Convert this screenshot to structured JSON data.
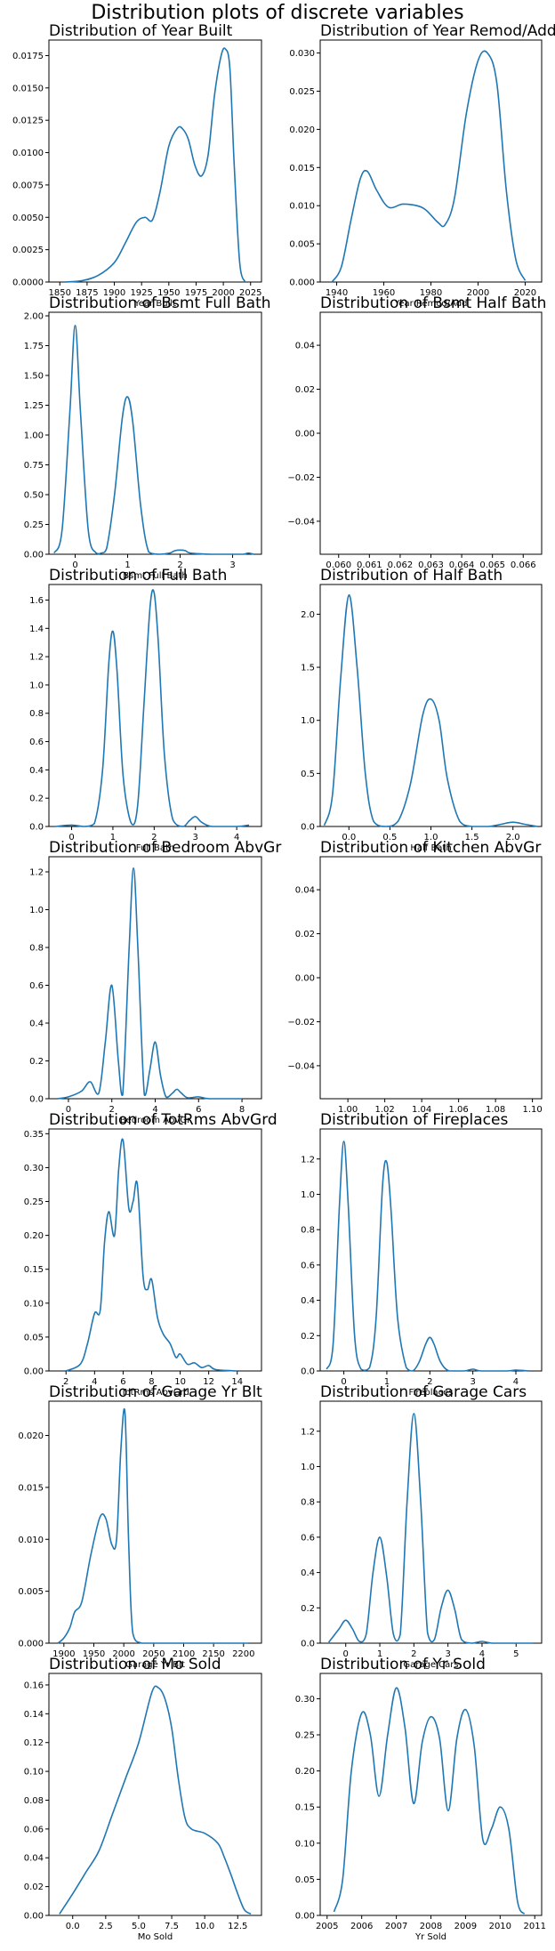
{
  "page_title": "Distribution plots of discrete variables",
  "colors": {
    "line": "#1f77b4",
    "axis": "#000000",
    "background": "#ffffff"
  },
  "chart_data": [
    {
      "type": "line",
      "title": "Distribution of Year Built",
      "xlabel": "Year Built",
      "ylabel": "",
      "xlim": [
        1840,
        2035
      ],
      "ylim": [
        0,
        0.0187
      ],
      "xticks": [
        1850,
        1875,
        1900,
        1925,
        1950,
        1975,
        2000,
        2025
      ],
      "yticks": [
        0,
        0.0025,
        0.005,
        0.0075,
        0.01,
        0.0125,
        0.015,
        0.0175
      ],
      "ytick_labels": [
        "0.0000",
        "0.0025",
        "0.0050",
        "0.0075",
        "0.0100",
        "0.0125",
        "0.0150",
        "0.0175"
      ],
      "x": [
        1855,
        1870,
        1885,
        1900,
        1910,
        1920,
        1928,
        1935,
        1942,
        1950,
        1958,
        1963,
        1968,
        1974,
        1980,
        1986,
        1992,
        1998,
        2002,
        2006,
        2010,
        2015,
        2020
      ],
      "y": [
        0,
        0.0001,
        0.0005,
        0.0015,
        0.003,
        0.0046,
        0.005,
        0.0048,
        0.007,
        0.0105,
        0.0119,
        0.0118,
        0.011,
        0.009,
        0.0082,
        0.0098,
        0.0145,
        0.0175,
        0.018,
        0.0165,
        0.009,
        0.0015,
        0
      ]
    },
    {
      "type": "line",
      "title": "Distribution of Year Remod/Add",
      "xlabel": "Year Remod/Add",
      "ylabel": "",
      "xlim": [
        1933,
        2027
      ],
      "ylim": [
        0,
        0.0317
      ],
      "xticks": [
        1940,
        1960,
        1980,
        2000,
        2020
      ],
      "yticks": [
        0,
        0.005,
        0.01,
        0.015,
        0.02,
        0.025,
        0.03
      ],
      "ytick_labels": [
        "0.000",
        "0.005",
        "0.010",
        "0.015",
        "0.020",
        "0.025",
        "0.030"
      ],
      "x": [
        1938,
        1942,
        1946,
        1950,
        1953,
        1957,
        1962,
        1968,
        1974,
        1978,
        1983,
        1986,
        1990,
        1995,
        2000,
        2004,
        2008,
        2012,
        2016,
        2020
      ],
      "y": [
        0,
        0.002,
        0.008,
        0.0135,
        0.0145,
        0.012,
        0.0098,
        0.0102,
        0.01,
        0.0094,
        0.0078,
        0.0075,
        0.011,
        0.022,
        0.029,
        0.03,
        0.026,
        0.012,
        0.003,
        0.0002
      ]
    },
    {
      "type": "line",
      "title": "Distribution of Bsmt Full Bath",
      "xlabel": "Bsmt Full Bath",
      "ylabel": "",
      "xlim": [
        -0.5,
        3.55
      ],
      "ylim": [
        0,
        2.03
      ],
      "xticks": [
        0,
        1,
        2,
        3
      ],
      "yticks": [
        0,
        0.25,
        0.5,
        0.75,
        1,
        1.25,
        1.5,
        1.75,
        2
      ],
      "ytick_labels": [
        "0.00",
        "0.25",
        "0.50",
        "0.75",
        "1.00",
        "1.25",
        "1.50",
        "1.75",
        "2.00"
      ],
      "x": [
        -0.4,
        -0.25,
        -0.1,
        0,
        0.1,
        0.25,
        0.4,
        0.5,
        0.6,
        0.75,
        0.9,
        1,
        1.1,
        1.25,
        1.4,
        1.6,
        1.8,
        1.9,
        2,
        2.1,
        2.2,
        2.6,
        3,
        3.2,
        3.3,
        3.4
      ],
      "y": [
        0.01,
        0.2,
        1.2,
        1.92,
        1.2,
        0.2,
        0.01,
        0.01,
        0.05,
        0.5,
        1.15,
        1.32,
        1.1,
        0.4,
        0.02,
        0,
        0.01,
        0.03,
        0.035,
        0.03,
        0.01,
        0,
        0,
        0,
        0.01,
        0
      ]
    },
    {
      "type": "line",
      "title": "Distribution of Bsmt Half Bath",
      "xlabel": "",
      "ylabel": "",
      "xlim": [
        0.0594,
        0.0666
      ],
      "ylim": [
        -0.055,
        0.055
      ],
      "xticks": [
        0.06,
        0.061,
        0.062,
        0.063,
        0.064,
        0.065,
        0.066
      ],
      "xtick_labels": [
        "0.060",
        "0.061",
        "0.062",
        "0.063",
        "0.064",
        "0.065",
        "0.066"
      ],
      "yticks": [
        -0.04,
        -0.02,
        0,
        0.02,
        0.04
      ],
      "ytick_labels": [
        "−0.04",
        "−0.02",
        "0.00",
        "0.02",
        "0.04"
      ],
      "x": [],
      "y": []
    },
    {
      "type": "line",
      "title": "Distribution of Full Bath",
      "xlabel": "Full Bath",
      "ylabel": "",
      "xlim": [
        -0.55,
        4.6
      ],
      "ylim": [
        0,
        1.71
      ],
      "xticks": [
        0,
        1,
        2,
        3,
        4
      ],
      "yticks": [
        0,
        0.2,
        0.4,
        0.6,
        0.8,
        1,
        1.2,
        1.4,
        1.6
      ],
      "ytick_labels": [
        "0.0",
        "0.2",
        "0.4",
        "0.6",
        "0.8",
        "1.0",
        "1.2",
        "1.4",
        "1.6"
      ],
      "x": [
        -0.4,
        0,
        0.3,
        0.55,
        0.75,
        0.9,
        1,
        1.1,
        1.25,
        1.45,
        1.6,
        1.75,
        1.9,
        2,
        2.1,
        2.25,
        2.45,
        2.7,
        2.85,
        3,
        3.15,
        3.4,
        4,
        4.3
      ],
      "y": [
        0,
        0.01,
        0,
        0.02,
        0.4,
        1.15,
        1.38,
        1.1,
        0.35,
        0.02,
        0.15,
        0.85,
        1.55,
        1.65,
        1.3,
        0.5,
        0.05,
        0,
        0.04,
        0.07,
        0.03,
        0,
        0,
        0.01
      ]
    },
    {
      "type": "line",
      "title": "Distribution of Half Bath",
      "xlabel": "Half Bath",
      "ylabel": "",
      "xlim": [
        -0.35,
        2.35
      ],
      "ylim": [
        0,
        2.28
      ],
      "xticks": [
        0,
        0.5,
        1,
        1.5,
        2
      ],
      "xtick_labels": [
        "0.0",
        "0.5",
        "1.0",
        "1.5",
        "2.0"
      ],
      "yticks": [
        0,
        0.5,
        1,
        1.5,
        2
      ],
      "ytick_labels": [
        "0.0",
        "0.5",
        "1.0",
        "1.5",
        "2.0"
      ],
      "x": [
        -0.3,
        -0.2,
        -0.1,
        0,
        0.1,
        0.2,
        0.3,
        0.45,
        0.6,
        0.75,
        0.9,
        1,
        1.1,
        1.2,
        1.35,
        1.5,
        1.7,
        1.85,
        2,
        2.15,
        2.3
      ],
      "y": [
        0.01,
        0.3,
        1.4,
        2.18,
        1.5,
        0.5,
        0.05,
        0,
        0.05,
        0.4,
        1.05,
        1.2,
        1,
        0.45,
        0.05,
        0,
        0,
        0.02,
        0.04,
        0.02,
        0
      ]
    },
    {
      "type": "line",
      "title": "Distribution of Bedroom AbvGr",
      "xlabel": "Bedroom AbvGr",
      "ylabel": "",
      "xlim": [
        -0.9,
        8.9
      ],
      "ylim": [
        0,
        1.28
      ],
      "xticks": [
        0,
        2,
        4,
        6,
        8
      ],
      "yticks": [
        0,
        0.2,
        0.4,
        0.6,
        0.8,
        1,
        1.2
      ],
      "ytick_labels": [
        "0.0",
        "0.2",
        "0.4",
        "0.6",
        "0.8",
        "1.0",
        "1.2"
      ],
      "x": [
        -0.5,
        0,
        0.6,
        1,
        1.4,
        1.7,
        2,
        2.3,
        2.5,
        2.8,
        3,
        3.2,
        3.5,
        3.75,
        4,
        4.25,
        4.5,
        4.8,
        5,
        5.2,
        5.5,
        6,
        6.5,
        8
      ],
      "y": [
        0,
        0.01,
        0.04,
        0.09,
        0.03,
        0.3,
        0.6,
        0.2,
        0.02,
        0.8,
        1.22,
        0.8,
        0.02,
        0.15,
        0.3,
        0.12,
        0.01,
        0.03,
        0.05,
        0.03,
        0.005,
        0.01,
        0,
        0
      ]
    },
    {
      "type": "line",
      "title": "Distribution of Kitchen AbvGr",
      "xlabel": "",
      "ylabel": "",
      "xlim": [
        0.985,
        1.105
      ],
      "ylim": [
        -0.055,
        0.055
      ],
      "xticks": [
        1,
        1.02,
        1.04,
        1.06,
        1.08,
        1.1
      ],
      "xtick_labels": [
        "1.00",
        "1.02",
        "1.04",
        "1.06",
        "1.08",
        "1.10"
      ],
      "yticks": [
        -0.04,
        -0.02,
        0,
        0.02,
        0.04
      ],
      "ytick_labels": [
        "−0.04",
        "−0.02",
        "0.00",
        "0.02",
        "0.04"
      ],
      "x": [],
      "y": []
    },
    {
      "type": "line",
      "title": "Distribution of TotRms AbvGrd",
      "xlabel": "TotRms AbvGrd",
      "ylabel": "",
      "xlim": [
        0.8,
        15.7
      ],
      "ylim": [
        0,
        0.357
      ],
      "xticks": [
        2,
        4,
        6,
        8,
        10,
        12,
        14
      ],
      "yticks": [
        0,
        0.05,
        0.1,
        0.15,
        0.2,
        0.25,
        0.3,
        0.35
      ],
      "ytick_labels": [
        "0.00",
        "0.05",
        "0.10",
        "0.15",
        "0.20",
        "0.25",
        "0.30",
        "0.35"
      ],
      "x": [
        2,
        3,
        3.5,
        4,
        4.4,
        4.7,
        5,
        5.4,
        5.7,
        6,
        6.4,
        6.7,
        7,
        7.4,
        7.7,
        8,
        8.4,
        8.8,
        9.3,
        9.7,
        10,
        10.5,
        11,
        11.5,
        12,
        12.5,
        14
      ],
      "y": [
        0,
        0.01,
        0.04,
        0.085,
        0.09,
        0.19,
        0.235,
        0.2,
        0.3,
        0.34,
        0.24,
        0.25,
        0.275,
        0.14,
        0.12,
        0.135,
        0.08,
        0.055,
        0.04,
        0.02,
        0.025,
        0.01,
        0.012,
        0.005,
        0.008,
        0.002,
        0
      ]
    },
    {
      "type": "line",
      "title": "Distribution of Fireplaces",
      "xlabel": "Fireplaces",
      "ylabel": "",
      "xlim": [
        -0.55,
        4.6
      ],
      "ylim": [
        0,
        1.37
      ],
      "xticks": [
        0,
        1,
        2,
        3,
        4
      ],
      "yticks": [
        0,
        0.2,
        0.4,
        0.6,
        0.8,
        1,
        1.2
      ],
      "ytick_labels": [
        "0.0",
        "0.2",
        "0.4",
        "0.6",
        "0.8",
        "1.0",
        "1.2"
      ],
      "x": [
        -0.4,
        -0.25,
        -0.1,
        0,
        0.1,
        0.25,
        0.4,
        0.6,
        0.75,
        0.9,
        1,
        1.1,
        1.25,
        1.45,
        1.6,
        1.75,
        1.9,
        2,
        2.1,
        2.25,
        2.45,
        2.8,
        3,
        3.2,
        3.8,
        4,
        4.3
      ],
      "y": [
        0.01,
        0.15,
        0.95,
        1.3,
        0.95,
        0.2,
        0.01,
        0.02,
        0.3,
        1.05,
        1.18,
        0.9,
        0.3,
        0.02,
        0,
        0.05,
        0.15,
        0.19,
        0.15,
        0.05,
        0,
        0,
        0.01,
        0,
        0,
        0.005,
        0
      ]
    },
    {
      "type": "line",
      "title": "Distribution of Garage Yr Blt",
      "xlabel": "Garage Yr Blt",
      "ylabel": "",
      "xlim": [
        1875,
        2230
      ],
      "ylim": [
        0,
        0.0233
      ],
      "xticks": [
        1900,
        1950,
        2000,
        2050,
        2100,
        2150,
        2200
      ],
      "yticks": [
        0,
        0.005,
        0.01,
        0.015,
        0.02
      ],
      "ytick_labels": [
        "0.000",
        "0.005",
        "0.010",
        "0.015",
        "0.020"
      ],
      "x": [
        1890,
        1900,
        1910,
        1918,
        1930,
        1945,
        1960,
        1970,
        1980,
        1988,
        1995,
        2002,
        2008,
        2015,
        2030,
        2060,
        2100,
        2150,
        2207
      ],
      "y": [
        0,
        0.0005,
        0.0015,
        0.003,
        0.004,
        0.0085,
        0.0121,
        0.012,
        0.0095,
        0.01,
        0.0185,
        0.0222,
        0.01,
        0.001,
        0,
        0,
        0,
        0,
        0
      ]
    },
    {
      "type": "line",
      "title": "Distribution of Garage Cars",
      "xlabel": "Garage Cars",
      "ylabel": "",
      "xlim": [
        -0.75,
        5.75
      ],
      "ylim": [
        0,
        1.37
      ],
      "xticks": [
        0,
        1,
        2,
        3,
        4,
        5
      ],
      "yticks": [
        0,
        0.2,
        0.4,
        0.6,
        0.8,
        1,
        1.2
      ],
      "ytick_labels": [
        "0.0",
        "0.2",
        "0.4",
        "0.6",
        "0.8",
        "1.0",
        "1.2"
      ],
      "x": [
        -0.5,
        -0.2,
        0,
        0.2,
        0.4,
        0.6,
        0.8,
        1,
        1.2,
        1.4,
        1.6,
        1.8,
        2,
        2.2,
        2.4,
        2.6,
        2.8,
        3,
        3.2,
        3.4,
        3.7,
        4,
        4.3,
        5,
        5.5
      ],
      "y": [
        0.005,
        0.08,
        0.13,
        0.08,
        0.01,
        0.05,
        0.4,
        0.6,
        0.38,
        0.05,
        0.05,
        0.8,
        1.3,
        0.8,
        0.06,
        0.02,
        0.2,
        0.3,
        0.19,
        0.02,
        0,
        0.01,
        0,
        0,
        0
      ]
    },
    {
      "type": "line",
      "title": "Distribution of Mo Sold",
      "xlabel": "Mo Sold",
      "ylabel": "",
      "xlim": [
        -1.8,
        14.3
      ],
      "ylim": [
        0,
        0.168
      ],
      "xticks": [
        0,
        2.5,
        5,
        7.5,
        10,
        12.5
      ],
      "xtick_labels": [
        "0.0",
        "2.5",
        "5.0",
        "7.5",
        "10.0",
        "12.5"
      ],
      "yticks": [
        0,
        0.02,
        0.04,
        0.06,
        0.08,
        0.1,
        0.12,
        0.14,
        0.16
      ],
      "ytick_labels": [
        "0.00",
        "0.02",
        "0.04",
        "0.06",
        "0.08",
        "0.10",
        "0.12",
        "0.14",
        "0.16"
      ],
      "x": [
        -1,
        0,
        1,
        2,
        3,
        4,
        5,
        6,
        6.5,
        7,
        7.5,
        8,
        8.5,
        9,
        10,
        11,
        11.5,
        12,
        12.5,
        13,
        13.5
      ],
      "y": [
        0.001,
        0.015,
        0.03,
        0.045,
        0.07,
        0.095,
        0.12,
        0.155,
        0.158,
        0.15,
        0.13,
        0.095,
        0.068,
        0.06,
        0.057,
        0.05,
        0.04,
        0.028,
        0.015,
        0.004,
        0.001
      ]
    },
    {
      "type": "line",
      "title": "Distribution of Yr Sold",
      "xlabel": "Yr Sold",
      "ylabel": "",
      "xlim": [
        2004.8,
        2011.2
      ],
      "ylim": [
        0,
        0.335
      ],
      "xticks": [
        2005,
        2006,
        2007,
        2008,
        2009,
        2010,
        2011
      ],
      "yticks": [
        0,
        0.05,
        0.1,
        0.15,
        0.2,
        0.25,
        0.3
      ],
      "ytick_labels": [
        "0.00",
        "0.05",
        "0.10",
        "0.15",
        "0.20",
        "0.25",
        "0.30"
      ],
      "x": [
        2005.2,
        2005.45,
        2005.7,
        2006,
        2006.25,
        2006.5,
        2006.75,
        2007,
        2007.25,
        2007.5,
        2007.75,
        2008,
        2008.25,
        2008.5,
        2008.75,
        2009,
        2009.25,
        2009.5,
        2009.75,
        2010,
        2010.25,
        2010.5,
        2010.7
      ],
      "y": [
        0.005,
        0.05,
        0.2,
        0.28,
        0.25,
        0.165,
        0.25,
        0.315,
        0.26,
        0.155,
        0.24,
        0.275,
        0.245,
        0.145,
        0.245,
        0.285,
        0.235,
        0.105,
        0.12,
        0.15,
        0.12,
        0.02,
        0.002
      ]
    }
  ]
}
